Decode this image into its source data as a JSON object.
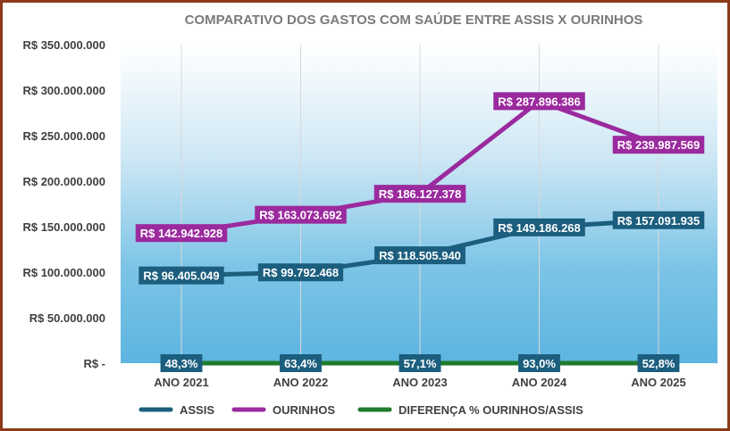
{
  "chart_data": {
    "type": "line",
    "title": "COMPARATIVO  DOS GASTOS COM SAÚDE ENTRE ASSIS X OURINHOS",
    "categories": [
      "ANO 2021",
      "ANO 2022",
      "ANO 2023",
      "ANO 2024",
      "ANO 2025"
    ],
    "ylim": [
      0,
      350000000
    ],
    "yticks": [
      {
        "value": 0,
        "label": "R$ -"
      },
      {
        "value": 50000000,
        "label": "R$ 50.000.000"
      },
      {
        "value": 100000000,
        "label": "R$ 100.000.000"
      },
      {
        "value": 150000000,
        "label": "R$ 150.000.000"
      },
      {
        "value": 200000000,
        "label": "R$ 200.000.000"
      },
      {
        "value": 250000000,
        "label": "R$ 250.000.000"
      },
      {
        "value": 300000000,
        "label": "R$ 300.000.000"
      },
      {
        "value": 350000000,
        "label": "R$ 350.000.000"
      }
    ],
    "grid": "vertical",
    "legend_position": "bottom",
    "series": [
      {
        "name": "ASSIS",
        "color": "#1b5e7e",
        "values": [
          96405049,
          99792468,
          118505940,
          149186268,
          157091935
        ],
        "labels": [
          "R$ 96.405.049",
          "R$ 99.792.468",
          "R$ 118.505.940",
          "R$ 149.186.268",
          "R$ 157.091.935"
        ]
      },
      {
        "name": "OURINHOS",
        "color": "#9b2a9e",
        "values": [
          142942928,
          163073692,
          186127378,
          287896386,
          239987569
        ],
        "labels": [
          "R$ 142.942.928",
          "R$ 163.073.692",
          "R$ 186.127.378",
          "R$ 287.896.386",
          "R$ 239.987.569"
        ]
      },
      {
        "name": "DIFERENÇA % OURINHOS/ASSIS",
        "color": "#1e7a2a",
        "values": [
          0,
          0,
          0,
          0,
          0
        ],
        "labels": [
          "48,3%",
          "63,4%",
          "57,1%",
          "93,0%",
          "52,8%"
        ],
        "label_box_color": "#1b5e7e"
      }
    ]
  }
}
